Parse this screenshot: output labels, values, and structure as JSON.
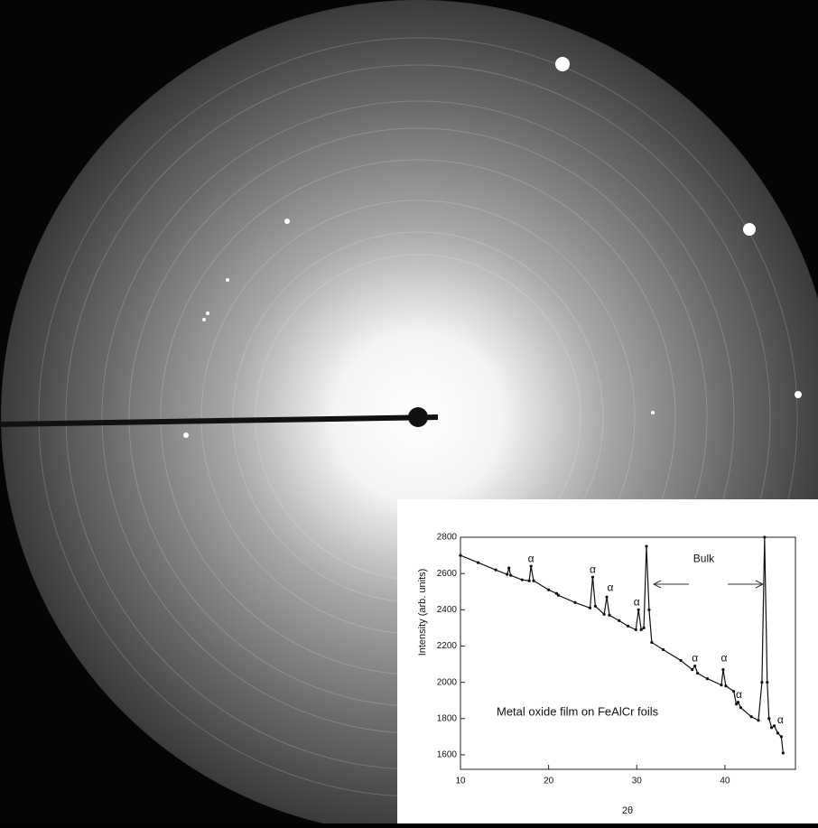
{
  "chart_data": {
    "type": "line",
    "x_label": "2θ",
    "y_label": "Intensity (arb. units)",
    "note": "Metal oxide film on FeAlCr foils",
    "xlim": [
      10,
      48
    ],
    "ylim": [
      1520,
      2800
    ],
    "xticks": [
      10,
      20,
      30,
      40
    ],
    "yticks": [
      1600,
      1800,
      2000,
      2200,
      2400,
      2600,
      2800
    ],
    "color": "#111111",
    "x": [
      10,
      12,
      14,
      15.3,
      15.5,
      15.7,
      17,
      17.8,
      18,
      18.3,
      20,
      20.9,
      21.1,
      23,
      24.7,
      25,
      25.3,
      26.3,
      26.6,
      26.9,
      28,
      29,
      29.9,
      30.2,
      30.5,
      30.8,
      31.1,
      31.4,
      31.7,
      33,
      35,
      36.3,
      36.6,
      36.9,
      38,
      39.6,
      39.8,
      40.1,
      41,
      41.3,
      41.5,
      41.8,
      43,
      43.8,
      44.2,
      44.5,
      44.8,
      45,
      45.3,
      45.6,
      46,
      46.4,
      46.6
    ],
    "values": [
      2700,
      2660,
      2620,
      2595,
      2630,
      2590,
      2565,
      2560,
      2640,
      2560,
      2510,
      2490,
      2480,
      2440,
      2410,
      2580,
      2420,
      2375,
      2470,
      2370,
      2340,
      2310,
      2290,
      2400,
      2290,
      2300,
      2750,
      2400,
      2220,
      2180,
      2120,
      2070,
      2090,
      2050,
      2020,
      1985,
      2070,
      1980,
      1950,
      1880,
      1890,
      1860,
      1810,
      1790,
      2000,
      2800,
      2000,
      1800,
      1750,
      1760,
      1720,
      1700,
      1610
    ],
    "annotations": [
      {
        "text": "α",
        "x": 18,
        "y": 2680
      },
      {
        "text": "α",
        "x": 25,
        "y": 2620
      },
      {
        "text": "α",
        "x": 27,
        "y": 2520
      },
      {
        "text": "α",
        "x": 30,
        "y": 2440
      },
      {
        "text": "α",
        "x": 36.6,
        "y": 2130
      },
      {
        "text": "α",
        "x": 39.9,
        "y": 2130
      },
      {
        "text": "α",
        "x": 41.6,
        "y": 1930
      },
      {
        "text": "α",
        "x": 46.3,
        "y": 1790
      },
      {
        "text": "Bulk",
        "x": 37.6,
        "y": 2680
      }
    ]
  }
}
